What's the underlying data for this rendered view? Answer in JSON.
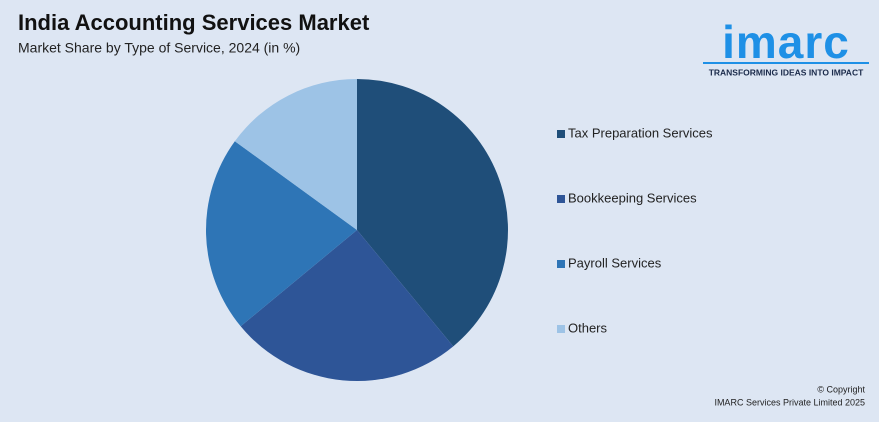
{
  "chart_data": {
    "type": "pie",
    "title": "India Accounting Services Market",
    "subtitle": "Market Share by Type of Service, 2024 (in %)",
    "categories": [
      "Tax Preparation Services",
      "Bookkeeping Services",
      "Payroll Services",
      "Others"
    ],
    "values": [
      39,
      25,
      21,
      15
    ],
    "colors": [
      "#1f4e79",
      "#2e5597",
      "#2e75b6",
      "#9dc3e6"
    ]
  },
  "logo": {
    "name": "imarc",
    "tagline": "TRANSFORMING IDEAS INTO IMPACT"
  },
  "footer": {
    "copyright": "© Copyright",
    "company": "IMARC Services Private Limited 2025"
  }
}
